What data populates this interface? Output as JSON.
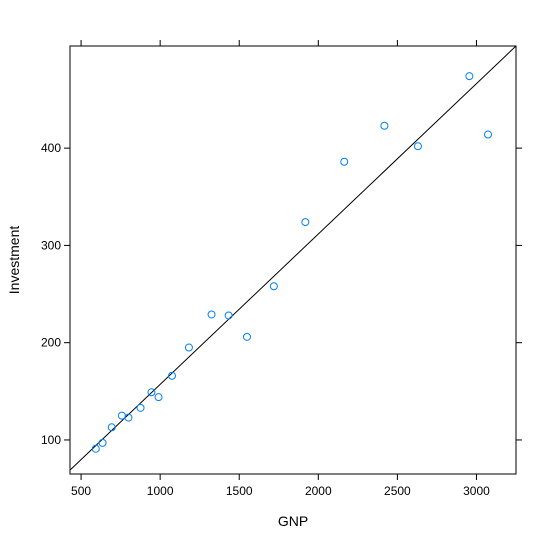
{
  "chart_data": {
    "type": "scatter",
    "title": "",
    "xlabel": "GNP",
    "ylabel": "Investment",
    "xlim": [
      430,
      3250
    ],
    "ylim": [
      65,
      505
    ],
    "xticks": [
      500,
      1000,
      1500,
      2000,
      2500,
      3000
    ],
    "yticks": [
      100,
      200,
      300,
      400
    ],
    "grid": false,
    "point_color": "#0080ff",
    "line_color": "#000000",
    "series": [
      {
        "x": [
          593,
          636,
          694,
          758,
          800,
          876,
          945,
          990,
          1075,
          1182,
          1325,
          1433,
          1549,
          1719,
          1918,
          2164,
          2418,
          2630,
          2955,
          3073
        ],
        "y": [
          91,
          97,
          113,
          125,
          123,
          133,
          149,
          144,
          166,
          195,
          229,
          228,
          206,
          258,
          324,
          386,
          423,
          402,
          474,
          414
        ]
      }
    ],
    "fit_line": {
      "x": [
        430,
        3250
      ],
      "y": [
        69,
        505
      ]
    }
  }
}
